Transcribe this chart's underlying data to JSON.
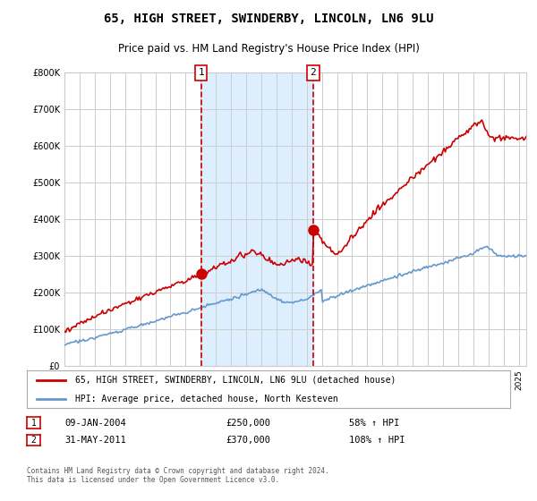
{
  "title": "65, HIGH STREET, SWINDERBY, LINCOLN, LN6 9LU",
  "subtitle": "Price paid vs. HM Land Registry's House Price Index (HPI)",
  "legend_line1": "65, HIGH STREET, SWINDERBY, LINCOLN, LN6 9LU (detached house)",
  "legend_line2": "HPI: Average price, detached house, North Kesteven",
  "annotation1_label": "1",
  "annotation1_date": "09-JAN-2004",
  "annotation1_price": "£250,000",
  "annotation1_pct": "58% ↑ HPI",
  "annotation2_label": "2",
  "annotation2_date": "31-MAY-2011",
  "annotation2_price": "£370,000",
  "annotation2_pct": "108% ↑ HPI",
  "footer": "Contains HM Land Registry data © Crown copyright and database right 2024.\nThis data is licensed under the Open Government Licence v3.0.",
  "hpi_color": "#6699cc",
  "price_color": "#cc0000",
  "dot_color": "#cc0000",
  "vline_color": "#cc0000",
  "shade_color": "#ddeeff",
  "grid_color": "#cccccc",
  "ylim": [
    0,
    800000
  ],
  "yticks": [
    0,
    100000,
    200000,
    300000,
    400000,
    500000,
    600000,
    700000,
    800000
  ],
  "x_start_year": 1995,
  "x_end_year": 2025,
  "sale1_year": 2004.03,
  "sale1_price": 250000,
  "sale2_year": 2011.42,
  "sale2_price": 370000,
  "background_color": "#ffffff"
}
